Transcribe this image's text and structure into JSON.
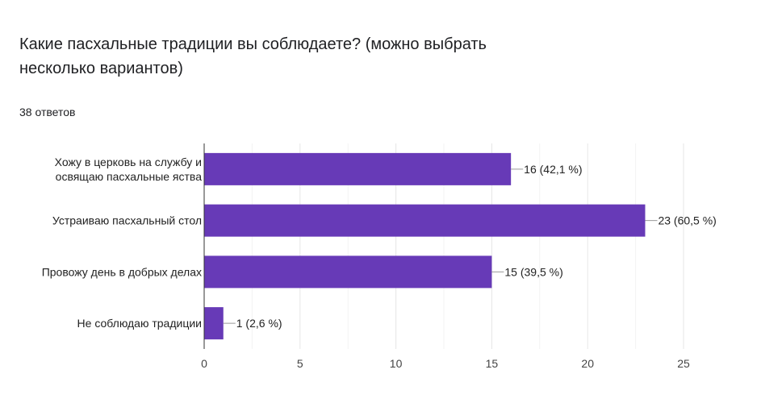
{
  "question": {
    "title": "Какие пасхальные традиции вы соблюдаете? (можно выбрать несколько вариантов)",
    "responses": "38 ответов"
  },
  "chart_data": {
    "type": "bar",
    "orientation": "horizontal",
    "categories": [
      [
        "Хожу в церковь на службу и",
        "освящаю пасхальные яства"
      ],
      [
        "Устраиваю пасхальный стол"
      ],
      [
        "Провожу день в добрых делах"
      ],
      [
        "Не соблюдаю традиции"
      ]
    ],
    "values": [
      16,
      23,
      15,
      1
    ],
    "value_labels": [
      "16 (42,1 %)",
      "23 (60,5 %)",
      "15 (39,5 %)",
      "1 (2,6 %)"
    ],
    "xlim": [
      0,
      25
    ],
    "xticks": [
      0,
      5,
      10,
      15,
      20,
      25
    ],
    "grid": true,
    "bar_color": "#673ab7"
  }
}
